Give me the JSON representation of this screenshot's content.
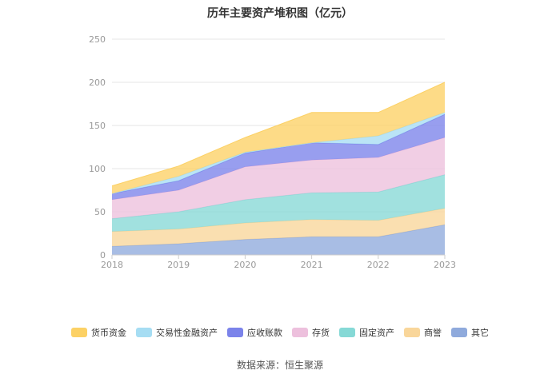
{
  "source": "数据来源：恒生聚源",
  "chart_data": {
    "type": "area",
    "stacked": true,
    "title": "历年主要资产堆积图（亿元）",
    "xlabel": "",
    "ylabel": "",
    "x": [
      "2018",
      "2019",
      "2020",
      "2021",
      "2022",
      "2023"
    ],
    "ylim": [
      0,
      250
    ],
    "yticks": [
      "0",
      "50",
      "100",
      "150",
      "200",
      "250"
    ],
    "grid": true,
    "legend_position": "bottom",
    "series": [
      {
        "name": "其它",
        "color": "#8faadc",
        "values": [
          10,
          13,
          18,
          21,
          21,
          35
        ]
      },
      {
        "name": "商誉",
        "color": "#f9d69a",
        "values": [
          17,
          17,
          19,
          20,
          19,
          19
        ]
      },
      {
        "name": "固定资产",
        "color": "#86d9d6",
        "values": [
          15,
          20,
          27,
          31,
          33,
          39
        ]
      },
      {
        "name": "存货",
        "color": "#edc0dd",
        "values": [
          22,
          25,
          38,
          38,
          40,
          43
        ]
      },
      {
        "name": "应收账款",
        "color": "#7b83ea",
        "values": [
          7,
          11,
          16,
          20,
          15,
          27
        ]
      },
      {
        "name": "交易性金融资产",
        "color": "#a6ddf3",
        "values": [
          0,
          5,
          1,
          0,
          10,
          2
        ]
      },
      {
        "name": "货币资金",
        "color": "#fcd165",
        "values": [
          9,
          12,
          17,
          35,
          27,
          35
        ]
      }
    ],
    "legend_order": [
      "货币资金",
      "交易性金融资产",
      "应收账款",
      "存货",
      "固定资产",
      "商誉",
      "其它"
    ]
  }
}
